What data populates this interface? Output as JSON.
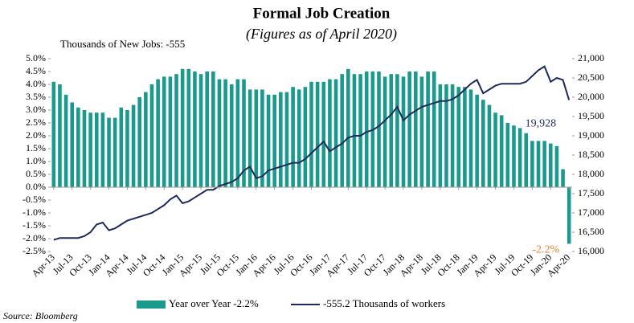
{
  "chart_data": {
    "type": "bar",
    "title": "Formal Job Creation",
    "subtitle": "(Figures as of April 2020)",
    "header_note": "Thousands of New Jobs: -555",
    "source": "Source: Bloomberg",
    "annotations": [
      "19,928",
      "-2.2%"
    ],
    "categories": [
      "Apr-13",
      null,
      null,
      "Jul-13",
      null,
      null,
      "Oct-13",
      null,
      null,
      "Jan-14",
      null,
      null,
      "Apr-14",
      null,
      null,
      "Jul-14",
      null,
      null,
      "Oct-14",
      null,
      null,
      "Jan-15",
      null,
      null,
      "Apr-15",
      null,
      null,
      "Jul-15",
      null,
      null,
      "Oct-15",
      null,
      null,
      "Jan-16",
      null,
      null,
      "Apr-16",
      null,
      null,
      "Jul-16",
      null,
      null,
      "Oct-16",
      null,
      null,
      "Jan-17",
      null,
      null,
      "Apr-17",
      null,
      null,
      "Jul-17",
      null,
      null,
      "Oct-17",
      null,
      null,
      "Jan-18",
      null,
      null,
      "Apr-18",
      null,
      null,
      "Jul-18",
      null,
      null,
      "Oct-18",
      null,
      null,
      "Jan-19",
      null,
      null,
      "Apr-19",
      null,
      null,
      "Jul-19",
      null,
      null,
      "Oct-19",
      null,
      null,
      "Jan-20",
      null,
      null,
      "Apr-20"
    ],
    "series": [
      {
        "name": "Year over Year -2.2%",
        "type": "bar",
        "color": "#1a9a8c",
        "values": [
          4.1,
          4.0,
          3.6,
          3.3,
          3.1,
          3.0,
          2.9,
          2.9,
          2.9,
          2.7,
          2.7,
          3.1,
          3.0,
          3.2,
          3.5,
          3.7,
          4.0,
          4.2,
          4.3,
          4.3,
          4.4,
          4.6,
          4.6,
          4.5,
          4.4,
          4.5,
          4.5,
          4.2,
          4.2,
          4.0,
          4.2,
          4.2,
          3.8,
          3.8,
          3.8,
          3.6,
          3.6,
          3.7,
          3.7,
          3.9,
          3.8,
          3.9,
          4.1,
          4.1,
          4.1,
          4.2,
          4.2,
          4.4,
          4.6,
          4.4,
          4.4,
          4.5,
          4.5,
          4.5,
          4.3,
          4.4,
          4.4,
          4.3,
          4.5,
          4.5,
          4.3,
          4.5,
          4.5,
          4.0,
          4.0,
          4.0,
          3.9,
          3.9,
          3.8,
          3.6,
          3.4,
          3.2,
          2.9,
          2.8,
          2.5,
          2.4,
          2.3,
          2.1,
          1.8,
          1.8,
          1.8,
          1.7,
          1.6,
          0.7,
          -2.2
        ]
      },
      {
        "name": "-555.2 Thousands of workers",
        "type": "line",
        "color": "#1f2a5c",
        "axis": "y2",
        "values": [
          16300,
          16350,
          16350,
          16350,
          16350,
          16400,
          16500,
          16700,
          16750,
          16550,
          16600,
          16700,
          16800,
          16850,
          16900,
          16950,
          17000,
          17100,
          17200,
          17350,
          17450,
          17250,
          17300,
          17400,
          17500,
          17600,
          17600,
          17700,
          17750,
          17800,
          17900,
          18100,
          18200,
          17900,
          17950,
          18100,
          18150,
          18200,
          18250,
          18300,
          18300,
          18400,
          18550,
          18700,
          18850,
          18600,
          18700,
          18800,
          18950,
          19000,
          19000,
          19100,
          19150,
          19250,
          19400,
          19550,
          19750,
          19400,
          19550,
          19650,
          19750,
          19800,
          19850,
          19900,
          19900,
          19950,
          20050,
          20200,
          20350,
          20450,
          20100,
          20200,
          20300,
          20350,
          20350,
          20350,
          20350,
          20400,
          20550,
          20700,
          20800,
          20400,
          20500,
          20450,
          19928
        ]
      }
    ],
    "ylim": [
      -2.5,
      5.0
    ],
    "yticks": [
      {
        "value": -2.5,
        "label": "-2.5%"
      },
      {
        "value": -2.0,
        "label": "-2.0%"
      },
      {
        "value": -1.5,
        "label": "-1.5%"
      },
      {
        "value": -1.0,
        "label": "-1.0%"
      },
      {
        "value": -0.5,
        "label": "-0.5%"
      },
      {
        "value": 0,
        "label": "0.0%"
      },
      {
        "value": 0.5,
        "label": "0.5%"
      },
      {
        "value": 1.0,
        "label": "1.0%"
      },
      {
        "value": 1.5,
        "label": "1.5%"
      },
      {
        "value": 2.0,
        "label": "2.0%"
      },
      {
        "value": 2.5,
        "label": "2.5%"
      },
      {
        "value": 3.0,
        "label": "3.0%"
      },
      {
        "value": 3.5,
        "label": "3.5%"
      },
      {
        "value": 4.0,
        "label": "4.0%"
      },
      {
        "value": 4.5,
        "label": "4.5%"
      },
      {
        "value": 5.0,
        "label": "5.0%"
      }
    ],
    "y2lim": [
      16000,
      21000
    ],
    "y2ticks": [
      {
        "value": 16000,
        "label": "16,000"
      },
      {
        "value": 16500,
        "label": "16,500"
      },
      {
        "value": 17000,
        "label": "17,000"
      },
      {
        "value": 17500,
        "label": "17,500"
      },
      {
        "value": 18000,
        "label": "18,000"
      },
      {
        "value": 18500,
        "label": "18,500"
      },
      {
        "value": 19000,
        "label": "19,000"
      },
      {
        "value": 19500,
        "label": "19,500"
      },
      {
        "value": 20000,
        "label": "20,000"
      },
      {
        "value": 20500,
        "label": "20,500"
      },
      {
        "value": 21000,
        "label": "21,000"
      }
    ],
    "annotation_colors": [
      "#1f2a5c",
      "#e8822a"
    ]
  }
}
